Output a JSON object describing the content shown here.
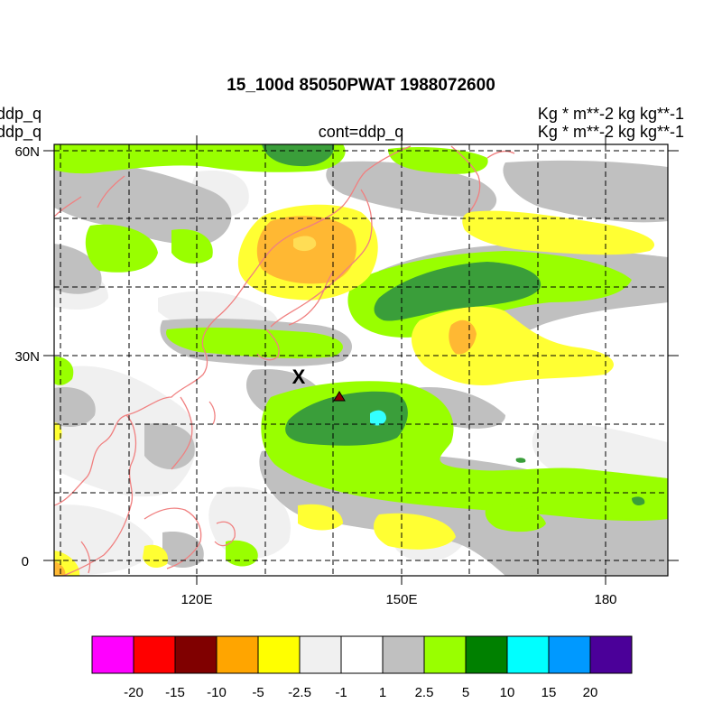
{
  "title": "15_100d 85050PWAT  1988072600",
  "left_labels": [
    "ddp_q",
    "ddp_q"
  ],
  "center_label": "cont=ddp_q",
  "right_labels": [
    "Kg  * m**-2 kg kg**-1",
    "Kg  * m**-2 kg kg**-1"
  ],
  "lat_labels": [
    "60N",
    "30N",
    "0"
  ],
  "lon_labels": [
    "120E",
    "150E",
    "180"
  ],
  "marker_x": "X",
  "colorbar": {
    "colors": [
      "#ff00ff",
      "#ff0000",
      "#800000",
      "#ffa500",
      "#ffff00",
      "#f0f0f0",
      "#ffffff",
      "#c0c0c0",
      "#99ff00",
      "#008000",
      "#00ffff",
      "#0099ff",
      "#4b0099"
    ],
    "labels": [
      "-20",
      "-15",
      "-10",
      "-5",
      "-2.5",
      "-1",
      "1",
      "2.5",
      "5",
      "10",
      "15",
      "20"
    ]
  },
  "coast_color": "#f08080"
}
